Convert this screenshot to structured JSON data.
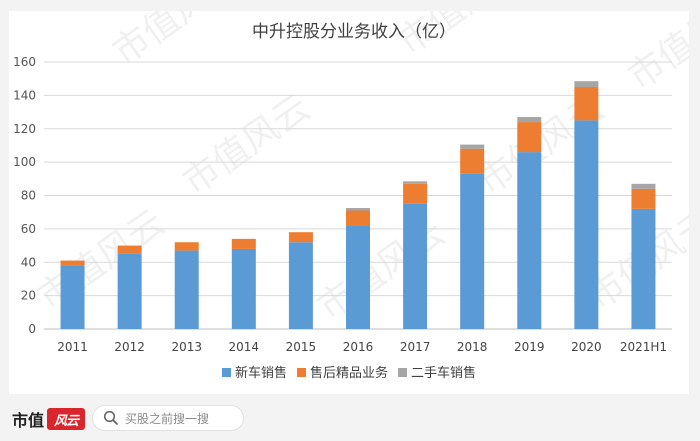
{
  "chart_data": {
    "type": "bar",
    "stacked": true,
    "title": "中升控股分业务收入（亿）",
    "categories": [
      "2011",
      "2012",
      "2013",
      "2014",
      "2015",
      "2016",
      "2017",
      "2018",
      "2019",
      "2020",
      "2021H1"
    ],
    "series": [
      {
        "name": "新车销售",
        "color": "#5b9bd5",
        "values": [
          38,
          45,
          47,
          48,
          52,
          62,
          75,
          93,
          106,
          125,
          72
        ]
      },
      {
        "name": "售后精品业务",
        "color": "#ed7d31",
        "values": [
          3,
          5,
          5,
          6,
          6,
          9,
          12,
          15,
          18,
          20,
          12
        ]
      },
      {
        "name": "二手车销售",
        "color": "#a5a5a5",
        "values": [
          0,
          0,
          0,
          0,
          0,
          1.5,
          1.5,
          2.5,
          3,
          3.5,
          3
        ]
      }
    ],
    "yticks": [
      0,
      20,
      40,
      60,
      80,
      100,
      120,
      140,
      160
    ],
    "ylim": [
      0,
      160
    ],
    "grid": true,
    "legend_position": "bottom"
  },
  "watermark": "市值风云",
  "footer": {
    "brand": "市值",
    "brand_logo": "风云",
    "search_placeholder": "买股之前搜一搜"
  }
}
